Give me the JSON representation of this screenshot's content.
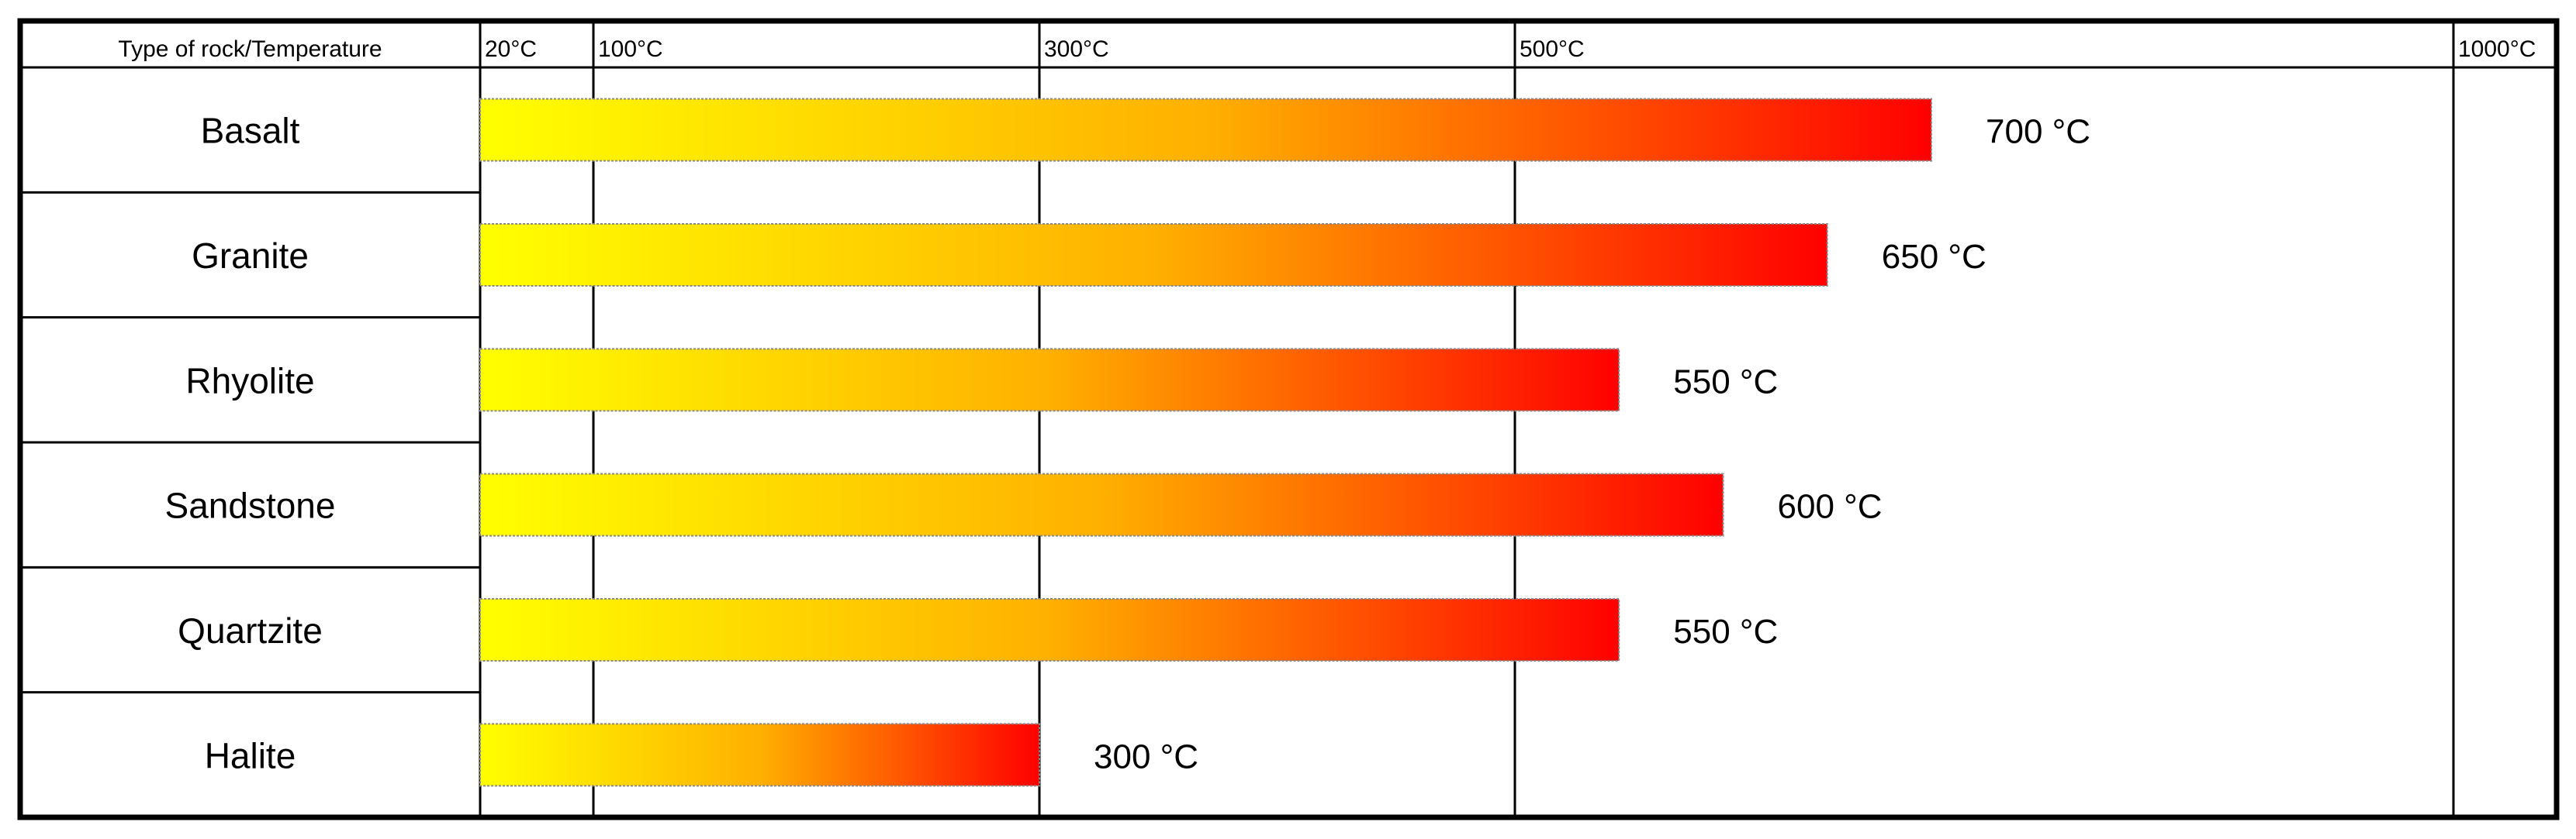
{
  "chart_data": {
    "type": "bar",
    "orientation": "horizontal",
    "corner_label": "Type of rock/Temperature",
    "columns": [
      {
        "label": "20°C",
        "value": 20
      },
      {
        "label": "100°C",
        "value": 100
      },
      {
        "label": "300°C",
        "value": 300
      },
      {
        "label": "500°C",
        "value": 500
      },
      {
        "label": "1000°C",
        "value": 1000
      }
    ],
    "categories": [
      "Basalt",
      "Granite",
      "Rhyolite",
      "Sandstone",
      "Quartzite",
      "Halite"
    ],
    "values": [
      700,
      650,
      550,
      600,
      550,
      300
    ],
    "value_labels": [
      "700 °C",
      "650 °C",
      "550 °C",
      "600 °C",
      "550 °C",
      "300 °C"
    ],
    "unit": "°C",
    "gradient": {
      "start": "#ffff00",
      "mid": "#ffb000",
      "end": "#ff0000"
    },
    "grid": true
  }
}
